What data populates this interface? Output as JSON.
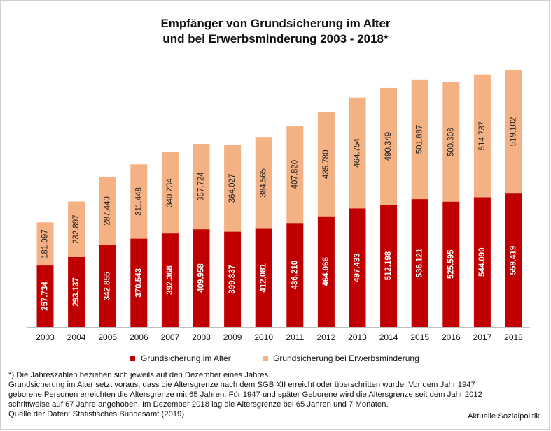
{
  "chart_data": {
    "type": "bar",
    "stacked": true,
    "title_line1": "Empfänger von Grundsicherung im Alter",
    "title_line2": "und bei Erwerbsminderung 2003 - 2018*",
    "xlabel": "",
    "ylabel": "",
    "ylim": [
      0,
      1100000
    ],
    "grid": false,
    "legend_position": "bottom",
    "categories": [
      "2003",
      "2004",
      "2005",
      "2006",
      "2007",
      "2008",
      "2009",
      "2010",
      "2011",
      "2012",
      "2013",
      "2014",
      "2015",
      "2016",
      "2017",
      "2018"
    ],
    "series": [
      {
        "name": "Grundsicherung im Alter",
        "color": "#c00000",
        "values": [
          257734,
          293137,
          342855,
          370543,
          392368,
          409958,
          399837,
          412081,
          436210,
          464066,
          497433,
          512198,
          536121,
          525595,
          544090,
          559419
        ],
        "labels": [
          "257.734",
          "293.137",
          "342.855",
          "370.543",
          "392.368",
          "409.958",
          "399.837",
          "412.081",
          "436.210",
          "464.066",
          "497.433",
          "512.198",
          "536.121",
          "525.595",
          "544.090",
          "559.419"
        ]
      },
      {
        "name": "Grundsicherung bei Erwerbsminderung",
        "color": "#f4b183",
        "values": [
          181097,
          232897,
          287440,
          311448,
          340234,
          357724,
          364027,
          384565,
          407820,
          435780,
          464754,
          490349,
          501887,
          500308,
          514737,
          519102
        ],
        "labels": [
          "181.097",
          "232.897",
          "287.440",
          "311.448",
          "340.234",
          "357.724",
          "364.027",
          "384.565",
          "407.820",
          "435.780",
          "464.754",
          "490.349",
          "501.887",
          "500.308",
          "514.737",
          "519.102"
        ]
      }
    ]
  },
  "footnotes": [
    "*) Die Jahreszahlen beziehen sich jeweils auf den Dezember eines Jahres.",
    "Grundsicherung im Alter setzt voraus, dass die Altersgrenze nach dem SGB XII erreicht oder überschritten wurde. Vor dem Jahr 1947",
    "geborene Personen erreichten die Altersgrenze mit 65 Jahren. Für 1947 und später Geborene wird die Altersgrenze seit dem Jahr 2012",
    "schrittweise auf 67 Jahre angehoben. Im Dezember 2018 lag die Altersgrenze bei 65 Jahren und 7 Monaten.",
    "Quelle der Daten: Statistisches Bundesamt (2019)"
  ],
  "publisher": "Aktuelle Sozialpolitik"
}
